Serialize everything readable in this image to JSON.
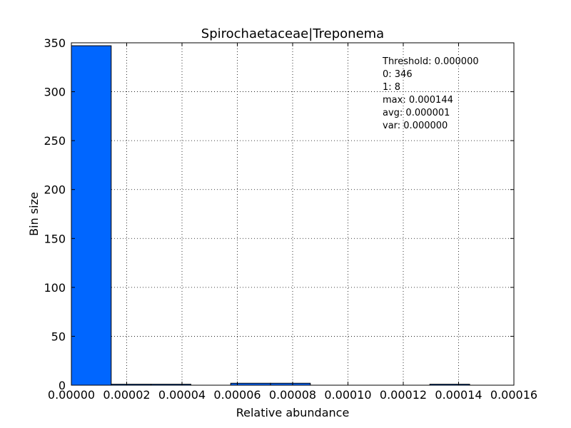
{
  "chart_data": {
    "type": "bar",
    "title": "Spirochaetaceae|Treponema",
    "xlabel": "Relative abundance",
    "ylabel": "Bin size",
    "xlim": [
      0,
      0.00016
    ],
    "ylim": [
      0,
      350
    ],
    "x_ticks": [
      0,
      2e-05,
      4e-05,
      6e-05,
      8e-05,
      0.0001,
      0.00012,
      0.00014,
      0.00016
    ],
    "x_tick_labels": [
      "0.00000",
      "0.00002",
      "0.00004",
      "0.00006",
      "0.00008",
      "0.00010",
      "0.00012",
      "0.00014",
      "0.00016"
    ],
    "y_ticks": [
      0,
      50,
      100,
      150,
      200,
      250,
      300,
      350
    ],
    "y_tick_labels": [
      "0",
      "50",
      "100",
      "150",
      "200",
      "250",
      "300",
      "350"
    ],
    "grid": true,
    "bar_color": "#0066ff",
    "bins": [
      {
        "x0": 0,
        "x1": 1.44e-05,
        "value": 347
      },
      {
        "x0": 1.44e-05,
        "x1": 2.88e-05,
        "value": 1
      },
      {
        "x0": 2.88e-05,
        "x1": 4.32e-05,
        "value": 1
      },
      {
        "x0": 4.32e-05,
        "x1": 5.76e-05,
        "value": 0
      },
      {
        "x0": 5.76e-05,
        "x1": 7.2e-05,
        "value": 2
      },
      {
        "x0": 7.2e-05,
        "x1": 8.64e-05,
        "value": 2
      },
      {
        "x0": 8.64e-05,
        "x1": 0.0001008,
        "value": 0
      },
      {
        "x0": 0.0001008,
        "x1": 0.0001152,
        "value": 0
      },
      {
        "x0": 0.0001152,
        "x1": 0.0001296,
        "value": 0
      },
      {
        "x0": 0.0001296,
        "x1": 0.000144,
        "value": 1
      }
    ],
    "annotation_lines": [
      "Threshold: 0.000000",
      "0: 346",
      "1: 8",
      "max: 0.000144",
      "avg: 0.000001",
      "var: 0.000000"
    ],
    "annotation_placement": "top-right"
  }
}
